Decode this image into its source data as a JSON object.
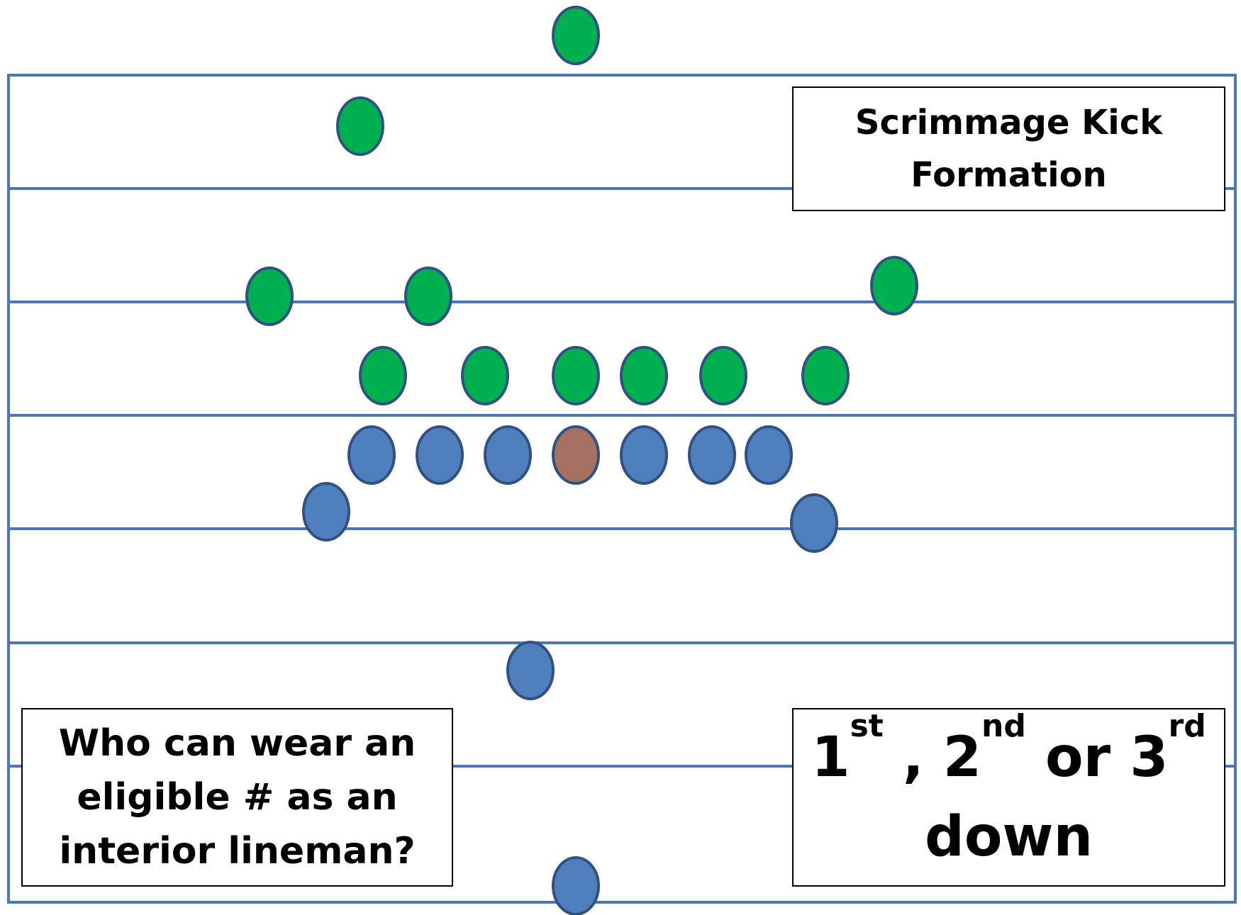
{
  "colors": {
    "line": "#4a78b4",
    "offense": "#4f80bd",
    "offense_stroke": "#2f5283",
    "center": "#a5705f",
    "defense": "#00b050",
    "defense_stroke": "#2f5283"
  },
  "title_box": {
    "line1": "Scrimmage Kick",
    "line2": "Formation"
  },
  "question_box": {
    "line1": "Who can wear an",
    "line2": "eligible # as an",
    "line3": "interior lineman?"
  },
  "down_box": {
    "num1": "1",
    "sup1": "st",
    "sep1": " , ",
    "num2": "2",
    "sup2": "nd",
    "sep2": " or ",
    "num3": "3",
    "sup3": "rd",
    "line2": "down"
  }
}
